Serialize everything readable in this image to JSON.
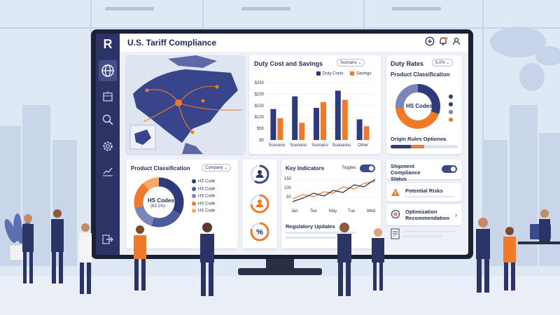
{
  "app": {
    "title": "U.S. Tariff Compliance",
    "logo_text": "R"
  },
  "header": {
    "icons": [
      "add-icon",
      "bell-icon",
      "user-icon"
    ]
  },
  "sidebar": {
    "items": [
      "globe-icon",
      "building-icon",
      "search-icon",
      "settings-icon",
      "chart-icon",
      "logout-icon"
    ]
  },
  "duty_cost": {
    "title": "Duty Cost  and Savings",
    "dropdown": "Scenario",
    "legend": [
      "Duty Costs",
      "Savings"
    ],
    "colors": {
      "duty": "#2f3a7a",
      "savings": "#f07a2a"
    }
  },
  "duty_rates": {
    "title": "Duty Rates",
    "dropdown": "5.0%",
    "subtitle": "Product Classification",
    "donut_label": "HS Codes",
    "footer": "Origin Rules Optionea"
  },
  "product_classification": {
    "title": "Product Classification",
    "dropdown": "Company",
    "donut_label": "HS Codes",
    "donut_value": "(83.1%)",
    "legend": [
      "HS Code",
      "HS Code",
      "HS Code",
      "HS Code",
      "HS Code"
    ],
    "legend_colors": [
      "#2f3a7a",
      "#4a5a9a",
      "#7a86b8",
      "#f07a2a",
      "#f6a76a"
    ]
  },
  "key_indicators": {
    "title": "Key Indicators",
    "toggle_label": "Toggles",
    "y_ticks": [
      "150",
      "100",
      "50"
    ],
    "x_ticks": [
      "Jan",
      "Tee",
      "May",
      "Tue",
      "Wed"
    ],
    "footer": "Regulatory Updates"
  },
  "right_panel": {
    "shipment": "Shipment Compliance Status",
    "risks": "Potential Risks",
    "optimization": "Optimization Recommendation"
  },
  "chart_data": {
    "type": "bar",
    "categories": [
      "Scenario",
      "Scenario",
      "Scenario",
      "Scenarios",
      "Other"
    ],
    "series": [
      {
        "name": "Duty Costs",
        "values": [
          135,
          190,
          140,
          215,
          90
        ]
      },
      {
        "name": "Savings",
        "values": [
          95,
          75,
          165,
          175,
          60
        ]
      }
    ],
    "y_ticks": [
      "$250",
      "$200",
      "$150",
      "$100",
      "$50",
      "$0"
    ],
    "ylim": [
      0,
      250
    ]
  },
  "colors": {
    "navy": "#1f2a55",
    "orange": "#f07a2a",
    "accent": "#3b4a8c"
  }
}
